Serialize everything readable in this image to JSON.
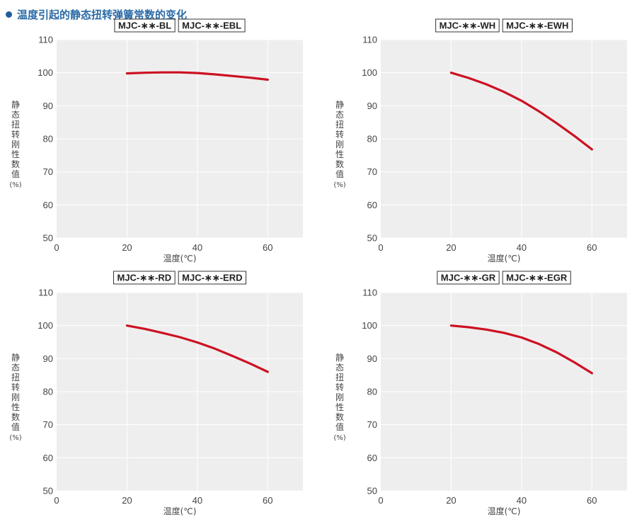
{
  "title": "温度引起的静态扭转弹簧常数的变化",
  "chart_data": [
    {
      "type": "line",
      "models": [
        "MJC-∗∗-BL",
        "MJC-∗∗-EBL"
      ],
      "xlabel": "温度(℃)",
      "ylabel": "静态扭转刚性数值(%)",
      "xlim": [
        0,
        70
      ],
      "ylim": [
        50,
        110
      ],
      "xticks": [
        0,
        20,
        40,
        60
      ],
      "yticks": [
        50,
        60,
        70,
        80,
        90,
        100,
        110
      ],
      "grid": true,
      "series": [
        {
          "color": "#cc1122",
          "x": [
            20,
            25,
            30,
            35,
            40,
            45,
            50,
            55,
            60
          ],
          "y": [
            99.8,
            100.0,
            100.1,
            100.1,
            99.9,
            99.5,
            99.0,
            98.5,
            97.9
          ]
        }
      ]
    },
    {
      "type": "line",
      "models": [
        "MJC-∗∗-WH",
        "MJC-∗∗-EWH"
      ],
      "xlabel": "温度(℃)",
      "ylabel": "静态扭转刚性数值(%)",
      "xlim": [
        0,
        70
      ],
      "ylim": [
        50,
        110
      ],
      "xticks": [
        0,
        20,
        40,
        60
      ],
      "yticks": [
        50,
        60,
        70,
        80,
        90,
        100,
        110
      ],
      "grid": true,
      "series": [
        {
          "color": "#cc1122",
          "x": [
            20,
            25,
            30,
            35,
            40,
            45,
            50,
            55,
            60
          ],
          "y": [
            100.0,
            98.4,
            96.5,
            94.2,
            91.5,
            88.3,
            84.7,
            80.9,
            76.8
          ]
        }
      ]
    },
    {
      "type": "line",
      "models": [
        "MJC-∗∗-RD",
        "MJC-∗∗-ERD"
      ],
      "xlabel": "温度(℃)",
      "ylabel": "静态扭转刚性数值(%)",
      "xlim": [
        0,
        70
      ],
      "ylim": [
        50,
        110
      ],
      "xticks": [
        0,
        20,
        40,
        60
      ],
      "yticks": [
        50,
        60,
        70,
        80,
        90,
        100,
        110
      ],
      "grid": true,
      "series": [
        {
          "color": "#cc1122",
          "x": [
            20,
            25,
            30,
            35,
            40,
            45,
            50,
            55,
            60
          ],
          "y": [
            100.0,
            99.0,
            97.8,
            96.5,
            94.9,
            93.0,
            90.8,
            88.5,
            86.0
          ]
        }
      ]
    },
    {
      "type": "line",
      "models": [
        "MJC-∗∗-GR",
        "MJC-∗∗-EGR"
      ],
      "xlabel": "温度(℃)",
      "ylabel": "静态扭转刚性数值(%)",
      "xlim": [
        0,
        70
      ],
      "ylim": [
        50,
        110
      ],
      "xticks": [
        0,
        20,
        40,
        60
      ],
      "yticks": [
        50,
        60,
        70,
        80,
        90,
        100,
        110
      ],
      "grid": true,
      "series": [
        {
          "color": "#cc1122",
          "x": [
            20,
            25,
            30,
            35,
            40,
            45,
            50,
            55,
            60
          ],
          "y": [
            100.0,
            99.5,
            98.8,
            97.8,
            96.4,
            94.4,
            91.9,
            88.9,
            85.6
          ]
        }
      ]
    }
  ]
}
